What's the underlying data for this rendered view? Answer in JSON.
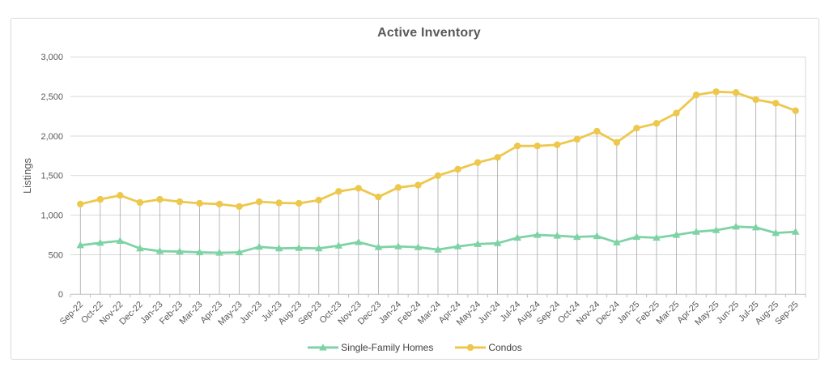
{
  "chart_data": {
    "type": "line",
    "title": "Active Inventory",
    "xlabel": "",
    "ylabel": "Listings",
    "ylim": [
      0,
      3000
    ],
    "ytick_step": 500,
    "ytick_labels": [
      "0",
      "500",
      "1,000",
      "1,500",
      "2,000",
      "2,500",
      "3,000"
    ],
    "grid": true,
    "drop_lines": true,
    "legend_position": "bottom",
    "categories": [
      "Sep-22",
      "Oct-22",
      "Nov-22",
      "Dec-22",
      "Jan-23",
      "Feb-23",
      "Mar-23",
      "Apr-23",
      "May-23",
      "Jun-23",
      "Jul-23",
      "Aug-23",
      "Sep-23",
      "Oct-23",
      "Nov-23",
      "Dec-23",
      "Jan-24",
      "Feb-24",
      "Mar-24",
      "Apr-24",
      "May-24",
      "Jun-24",
      "Jul-24",
      "Aug-24",
      "Sep-24",
      "Oct-24",
      "Nov-24",
      "Dec-24",
      "Jan-25",
      "Feb-25",
      "Mar-25",
      "Apr-25",
      "May-25",
      "Jun-25",
      "Jul-25",
      "Aug-25",
      "Sep-25"
    ],
    "series": [
      {
        "name": "Single-Family Homes",
        "marker": "triangle",
        "color": "#7ED3A5",
        "values": [
          620,
          650,
          675,
          580,
          545,
          540,
          530,
          525,
          530,
          600,
          580,
          585,
          580,
          615,
          660,
          595,
          605,
          595,
          565,
          605,
          635,
          645,
          715,
          750,
          740,
          725,
          735,
          655,
          725,
          715,
          750,
          790,
          810,
          855,
          845,
          775,
          790
        ]
      },
      {
        "name": "Condos",
        "marker": "circle",
        "color": "#EDC84D",
        "values": [
          1140,
          1200,
          1250,
          1160,
          1200,
          1170,
          1150,
          1140,
          1110,
          1170,
          1155,
          1150,
          1190,
          1300,
          1340,
          1230,
          1350,
          1380,
          1500,
          1580,
          1665,
          1730,
          1875,
          1875,
          1890,
          1960,
          2060,
          1920,
          2100,
          2160,
          2290,
          2520,
          2560,
          2550,
          2460,
          2415,
          2320
        ]
      }
    ]
  },
  "styles": {
    "text_color": "#595959",
    "title_color": "#595959",
    "legend_text_color": "#404040",
    "gridline_color": "#D9D9D9",
    "axis_color": "#BFBFBF",
    "dropline_color": "#A6A6A6",
    "panel_border_color": "#D9D9D9",
    "background": "#FFFFFF"
  }
}
